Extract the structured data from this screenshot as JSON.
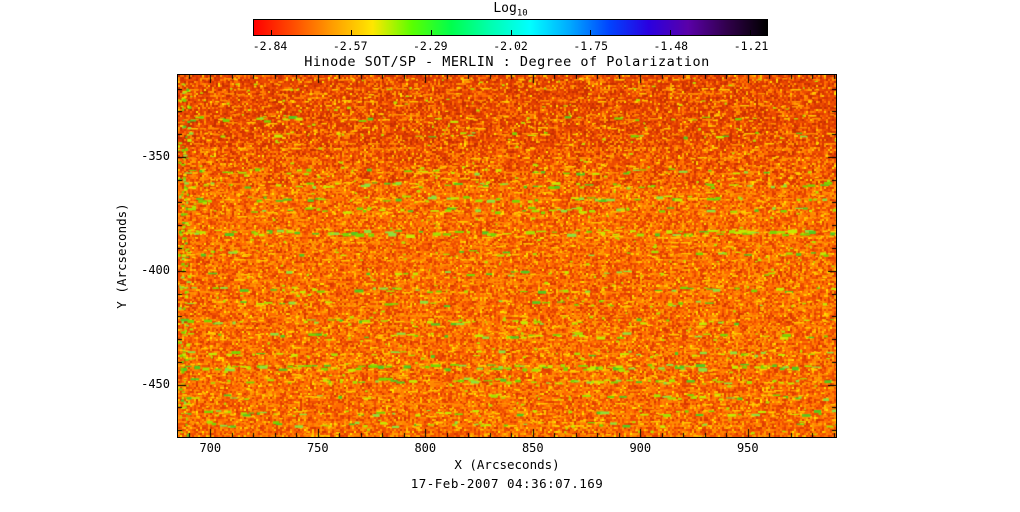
{
  "chart_data": {
    "type": "heatmap",
    "title": "Hinode SOT/SP - MERLIN : Degree of Polarization",
    "xlabel": "X (Arcseconds)",
    "ylabel": "Y (Arcseconds)",
    "caption": "17-Feb-2007 04:36:07.169",
    "x_range": [
      685,
      991
    ],
    "y_range": [
      -473,
      -314
    ],
    "x_ticks": [
      700,
      750,
      800,
      850,
      900,
      950
    ],
    "y_ticks": [
      -350,
      -400,
      -450
    ],
    "minor_tick_step": 10,
    "grid": false,
    "colorbar": {
      "position": "top",
      "scale_label": "Log",
      "scale_label_sub": "10",
      "ticks": [
        -2.84,
        -2.57,
        -2.29,
        -2.02,
        -1.75,
        -1.48,
        -1.21
      ],
      "tick_inset_fraction": 0.033,
      "stops": [
        "#ff0000",
        "#ff4d00",
        "#ff9e00",
        "#ffe700",
        "#5aff00",
        "#00ff4d",
        "#00ffb0",
        "#00ffff",
        "#00aaff",
        "#0044ff",
        "#2a00e0",
        "#5a00a8",
        "#30004a",
        "#000000"
      ]
    },
    "field_description": "Solar degree-of-polarization map: speckled orange/red background (log10 DoP near -2.6) with horizontal bands of enhanced green/yellow polarization",
    "palette": {
      "base": "#f05a00",
      "noise": [
        {
          "c": "#ff6c00",
          "w": 0.26
        },
        {
          "c": "#ef4f00",
          "w": 0.22
        },
        {
          "c": "#ff8500",
          "w": 0.18
        },
        {
          "c": "#e23e00",
          "w": 0.12
        },
        {
          "c": "#ff9e00",
          "w": 0.1
        },
        {
          "c": "#ffc000",
          "w": 0.05
        },
        {
          "c": "#d63600",
          "w": 0.04
        },
        {
          "c": "#ffe000",
          "w": 0.015
        }
      ],
      "dark": [
        "#e03c00",
        "#d83400",
        "#ea4a00",
        "#c62e00"
      ],
      "greens": [
        "#a8e000",
        "#7bd400",
        "#c6ea00",
        "#55c81e",
        "#8fe03c"
      ],
      "accents": [
        "#ffd000",
        "#b5e300"
      ]
    },
    "bands": [
      {
        "y": -333,
        "strength": 0.22
      },
      {
        "y": -340,
        "strength": 0.18
      },
      {
        "y": -356,
        "strength": 0.35
      },
      {
        "y": -362,
        "strength": 0.5
      },
      {
        "y": -368,
        "strength": 0.45
      },
      {
        "y": -373,
        "strength": 0.55
      },
      {
        "y": -383,
        "strength": 0.85
      },
      {
        "y": -392,
        "strength": 0.3
      },
      {
        "y": -401,
        "strength": 0.3
      },
      {
        "y": -408,
        "strength": 0.4
      },
      {
        "y": -414,
        "strength": 0.45
      },
      {
        "y": -422,
        "strength": 0.5
      },
      {
        "y": -428,
        "strength": 0.45
      },
      {
        "y": -436,
        "strength": 0.4
      },
      {
        "y": -442,
        "strength": 0.95
      },
      {
        "y": -448,
        "strength": 0.6
      },
      {
        "y": -455,
        "strength": 0.4
      },
      {
        "y": -462,
        "strength": 0.45
      },
      {
        "y": -467,
        "strength": 0.35
      }
    ]
  }
}
